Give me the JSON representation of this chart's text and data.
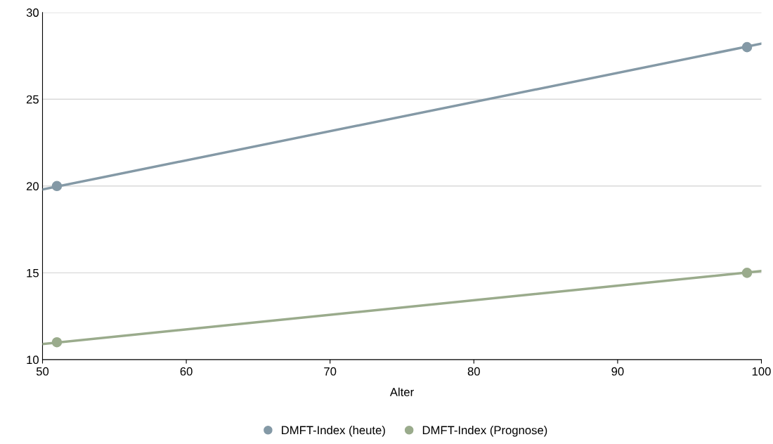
{
  "chart_data": {
    "type": "scatter",
    "xlabel": "Alter",
    "xlim": [
      50,
      100
    ],
    "xticks": [
      50,
      60,
      70,
      80,
      90,
      100
    ],
    "ylim": [
      10,
      30
    ],
    "yticks": [
      10,
      15,
      20,
      25,
      30
    ],
    "grid": "y",
    "legend": "bottom",
    "marker": "circle",
    "series": [
      {
        "name": "DMFT-Index (heute)",
        "color": "#8499a6",
        "x": [
          51,
          99
        ],
        "values": [
          20,
          28
        ]
      },
      {
        "name": "DMFT-Index (Prognose)",
        "color": "#9aab8c",
        "x": [
          51,
          99
        ],
        "values": [
          11,
          15
        ]
      },
      {
        "type": "line",
        "marker": "none",
        "color": "#8499a6",
        "x": [
          50,
          100
        ],
        "values": [
          19.8,
          28.2
        ]
      },
      {
        "type": "line",
        "marker": "none",
        "color": "#9aab8c",
        "x": [
          50,
          100
        ],
        "values": [
          10.9,
          15.1
        ]
      }
    ]
  }
}
